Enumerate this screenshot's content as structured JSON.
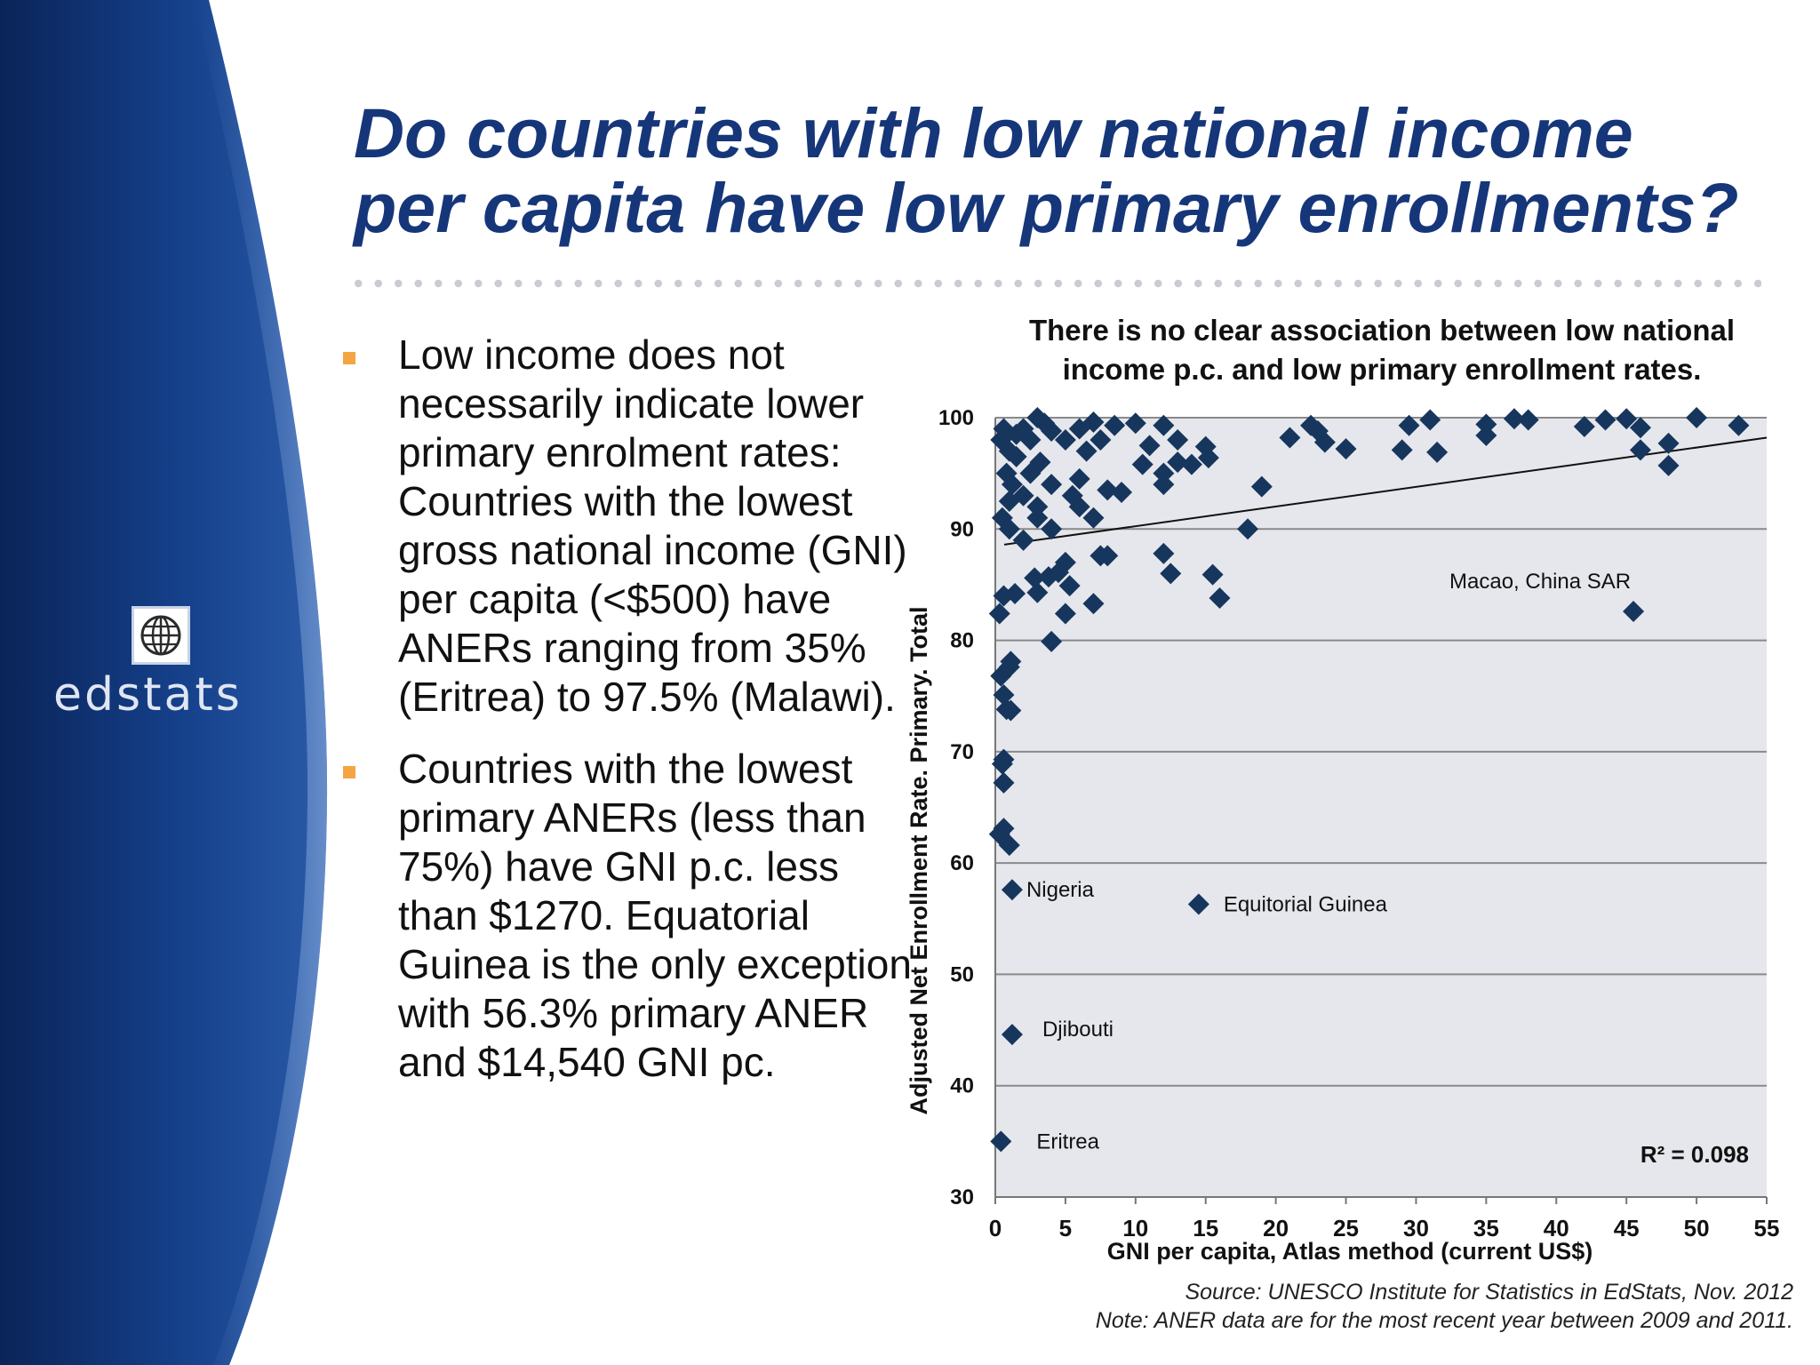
{
  "brand": {
    "logo_text": "edstats",
    "logo_icon": "globe-icon"
  },
  "title": {
    "line1": "Do countries with low national income",
    "line2": "per capita have low primary enrollments?"
  },
  "bullets": [
    "Low income does not necessarily indicate lower primary enrolment rates: Countries with the lowest gross national income (GNI) per capita (<$500) have ANERs ranging from 35% (Eritrea) to 97.5% (Malawi).",
    "Countries with the lowest primary ANERs (less than 75%) have GNI p.c. less than $1270. Equatorial Guinea is the only exception with 56.3% primary ANER and $14,540 GNI pc."
  ],
  "colors": {
    "title": "#16367a",
    "marker": "#17365d",
    "plot_bg": "#e6e7ec",
    "bullet": "#f5a443",
    "sidebar": "#0f2f6e"
  },
  "chart_data": {
    "type": "scatter",
    "title": "There is no clear association between low national income p.c. and low primary enrollment rates.",
    "xlabel": "GNI per capita, Atlas method (current US$)",
    "ylabel": "Adjusted Net Enrollment Rate. Primary. Total",
    "xlim": [
      0,
      55
    ],
    "ylim": [
      30,
      100
    ],
    "xticks": [
      "0",
      "5",
      "10",
      "15",
      "20",
      "25",
      "30",
      "35",
      "40",
      "45",
      "50",
      "55"
    ],
    "yticks": [
      "30",
      "40",
      "50",
      "60",
      "70",
      "80",
      "90",
      "100"
    ],
    "grid": true,
    "r_squared": "R² = 0.098",
    "trendline": {
      "x": [
        0,
        55
      ],
      "y": [
        88.4,
        98.2
      ]
    },
    "labels": [
      {
        "text": "Macao, China SAR",
        "x": 45.5,
        "y": 82.6
      },
      {
        "text": "Nigeria",
        "x": 1.2,
        "y": 57.6
      },
      {
        "text": "Equitorial Guinea",
        "x": 14.5,
        "y": 56.3
      },
      {
        "text": "Djibouti",
        "x": 1.2,
        "y": 44.6
      },
      {
        "text": "Eritrea",
        "x": 0.4,
        "y": 35.0
      }
    ],
    "points": [
      [
        0.4,
        35.0
      ],
      [
        1.2,
        44.6
      ],
      [
        1.2,
        57.6
      ],
      [
        14.5,
        56.3
      ],
      [
        45.5,
        82.6
      ],
      [
        0.3,
        62.6
      ],
      [
        0.6,
        63.1
      ],
      [
        1.0,
        61.6
      ],
      [
        0.6,
        67.2
      ],
      [
        0.5,
        68.9
      ],
      [
        0.6,
        69.3
      ],
      [
        0.8,
        73.8
      ],
      [
        1.1,
        73.7
      ],
      [
        0.6,
        75.1
      ],
      [
        0.4,
        76.8
      ],
      [
        1.0,
        77.6
      ],
      [
        1.1,
        78.1
      ],
      [
        0.3,
        82.4
      ],
      [
        0.6,
        84.0
      ],
      [
        1.4,
        84.2
      ],
      [
        4.0,
        79.9
      ],
      [
        5.0,
        82.4
      ],
      [
        7.0,
        83.3
      ],
      [
        2.8,
        85.6
      ],
      [
        3.0,
        84.3
      ],
      [
        3.8,
        85.7
      ],
      [
        4.5,
        86.1
      ],
      [
        5.0,
        87.0
      ],
      [
        5.3,
        84.9
      ],
      [
        7.5,
        87.6
      ],
      [
        8.0,
        87.6
      ],
      [
        12.0,
        87.8
      ],
      [
        12.5,
        86.0
      ],
      [
        15.5,
        85.9
      ],
      [
        16.0,
        83.8
      ],
      [
        18.0,
        90.0
      ],
      [
        19.0,
        93.8
      ],
      [
        2.0,
        89.0
      ],
      [
        1.0,
        90.0
      ],
      [
        3.0,
        91.0
      ],
      [
        4.0,
        90.0
      ],
      [
        6.0,
        92.0
      ],
      [
        7.0,
        91.0
      ],
      [
        8.0,
        93.5
      ],
      [
        9.0,
        93.3
      ],
      [
        12.0,
        94.0
      ],
      [
        13.0,
        96.0
      ],
      [
        0.4,
        98.0
      ],
      [
        0.6,
        99.0
      ],
      [
        1.0,
        97.0
      ],
      [
        1.5,
        98.5
      ],
      [
        2.0,
        99.0
      ],
      [
        2.5,
        98.0
      ],
      [
        3.0,
        100.0
      ],
      [
        3.5,
        99.5
      ],
      [
        4.0,
        98.8
      ],
      [
        5.0,
        98.0
      ],
      [
        6.0,
        99.0
      ],
      [
        7.0,
        99.6
      ],
      [
        7.5,
        98.0
      ],
      [
        8.5,
        99.3
      ],
      [
        10.0,
        99.5
      ],
      [
        12.0,
        99.3
      ],
      [
        13.0,
        98.0
      ],
      [
        11.0,
        97.5
      ],
      [
        0.8,
        95.0
      ],
      [
        1.2,
        94.0
      ],
      [
        2.0,
        93.0
      ],
      [
        2.5,
        95.0
      ],
      [
        3.2,
        96.0
      ],
      [
        4.0,
        94.0
      ],
      [
        5.5,
        93.0
      ],
      [
        6.0,
        94.5
      ],
      [
        6.5,
        97.0
      ],
      [
        1.0,
        92.5
      ],
      [
        0.5,
        91.0
      ],
      [
        1.5,
        96.5
      ],
      [
        3.0,
        92.0
      ],
      [
        10.5,
        95.8
      ],
      [
        12.0,
        95.0
      ],
      [
        14.0,
        95.8
      ],
      [
        15.0,
        97.4
      ],
      [
        15.2,
        96.4
      ],
      [
        21.0,
        98.2
      ],
      [
        22.5,
        99.3
      ],
      [
        23.0,
        98.8
      ],
      [
        23.5,
        97.8
      ],
      [
        25.0,
        97.2
      ],
      [
        29.0,
        97.1
      ],
      [
        29.5,
        99.3
      ],
      [
        31.0,
        99.8
      ],
      [
        31.5,
        96.9
      ],
      [
        35.0,
        99.4
      ],
      [
        35.0,
        98.4
      ],
      [
        37.0,
        99.9
      ],
      [
        38.0,
        99.8
      ],
      [
        42.0,
        99.2
      ],
      [
        43.5,
        99.8
      ],
      [
        45.0,
        99.9
      ],
      [
        46.0,
        99.1
      ],
      [
        46.0,
        97.1
      ],
      [
        48.0,
        97.7
      ],
      [
        48.0,
        95.7
      ],
      [
        50.0,
        100.0
      ],
      [
        53.0,
        99.3
      ]
    ]
  },
  "source_note": {
    "source": "Source: UNESCO Institute for Statistics in EdStats, Nov. 2012",
    "note": "Note: ANER data are for the most recent year between 2009 and 2011."
  }
}
